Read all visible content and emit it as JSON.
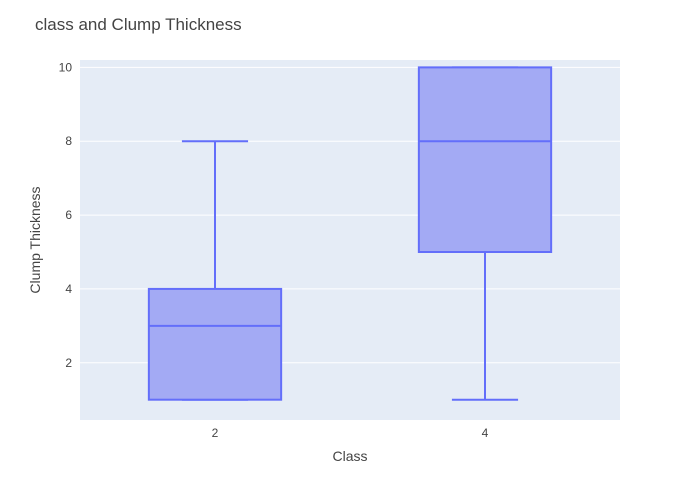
{
  "chart_data": {
    "type": "box",
    "title": "class and Clump Thickness",
    "xlabel": "Class",
    "ylabel": "Clump Thickness",
    "categories": [
      "2",
      "4"
    ],
    "boxes": [
      {
        "category": "2",
        "min": 1,
        "q1": 1,
        "median": 3,
        "q3": 4,
        "max": 8
      },
      {
        "category": "4",
        "min": 1,
        "q1": 5,
        "median": 8,
        "q3": 10,
        "max": 10
      }
    ],
    "y_ticks": [
      2,
      4,
      6,
      8,
      10
    ],
    "ylim": [
      0.45,
      10.2
    ],
    "grid": true,
    "colors": {
      "box_fill": "#a3aaf4",
      "box_line": "#636efa",
      "plot_bg": "#e5ecf6",
      "grid": "#ffffff",
      "text": "#444444"
    }
  }
}
